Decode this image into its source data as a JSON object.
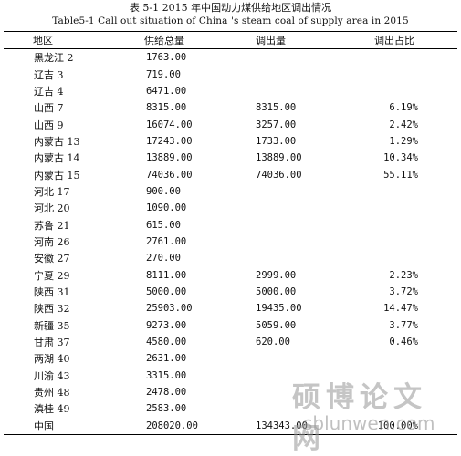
{
  "caption": {
    "cn": "表 5-1 2015 年中国动力煤供给地区调出情况",
    "en": "Table5-1 Call out situation of China 's steam coal of supply area in 2015"
  },
  "table": {
    "headers": [
      "地区",
      "供给总量",
      "调出量",
      "调出占比"
    ],
    "rows": [
      {
        "region": "黑龙江 2",
        "supply": "1763.00",
        "out": "",
        "ratio": ""
      },
      {
        "region": "辽吉 3",
        "supply": "719.00",
        "out": "",
        "ratio": ""
      },
      {
        "region": "辽吉 4",
        "supply": "6471.00",
        "out": "",
        "ratio": ""
      },
      {
        "region": "山西 7",
        "supply": "8315.00",
        "out": "8315.00",
        "ratio": "6.19%"
      },
      {
        "region": "山西 9",
        "supply": "16074.00",
        "out": "3257.00",
        "ratio": "2.42%"
      },
      {
        "region": "内蒙古 13",
        "supply": "17243.00",
        "out": "1733.00",
        "ratio": "1.29%"
      },
      {
        "region": "内蒙古 14",
        "supply": "13889.00",
        "out": "13889.00",
        "ratio": "10.34%"
      },
      {
        "region": "内蒙古 15",
        "supply": "74036.00",
        "out": "74036.00",
        "ratio": "55.11%"
      },
      {
        "region": "河北 17",
        "supply": "900.00",
        "out": "",
        "ratio": ""
      },
      {
        "region": "河北 20",
        "supply": "1090.00",
        "out": "",
        "ratio": ""
      },
      {
        "region": "苏鲁 21",
        "supply": "615.00",
        "out": "",
        "ratio": ""
      },
      {
        "region": "河南 26",
        "supply": "2761.00",
        "out": "",
        "ratio": ""
      },
      {
        "region": "安徽 27",
        "supply": "270.00",
        "out": "",
        "ratio": ""
      },
      {
        "region": "宁夏 29",
        "supply": "8111.00",
        "out": "2999.00",
        "ratio": "2.23%"
      },
      {
        "region": "陕西 31",
        "supply": "5000.00",
        "out": "5000.00",
        "ratio": "3.72%"
      },
      {
        "region": "陕西 32",
        "supply": "25903.00",
        "out": "19435.00",
        "ratio": "14.47%"
      },
      {
        "region": "新疆 35",
        "supply": "9273.00",
        "out": "5059.00",
        "ratio": "3.77%"
      },
      {
        "region": "甘肃 37",
        "supply": "4580.00",
        "out": "620.00",
        "ratio": "0.46%"
      },
      {
        "region": "两湖 40",
        "supply": "2631.00",
        "out": "",
        "ratio": ""
      },
      {
        "region": "川渝 43",
        "supply": "3315.00",
        "out": "",
        "ratio": ""
      },
      {
        "region": "贵州 48",
        "supply": "2478.00",
        "out": "",
        "ratio": ""
      },
      {
        "region": "滇桂 49",
        "supply": "2583.00",
        "out": "",
        "ratio": ""
      },
      {
        "region": "中国",
        "supply": "208020.00",
        "out": "134343.00",
        "ratio": "100.00%"
      }
    ]
  },
  "watermark": {
    "cn": "硕博论文网",
    "url": "sblunwen.com"
  }
}
